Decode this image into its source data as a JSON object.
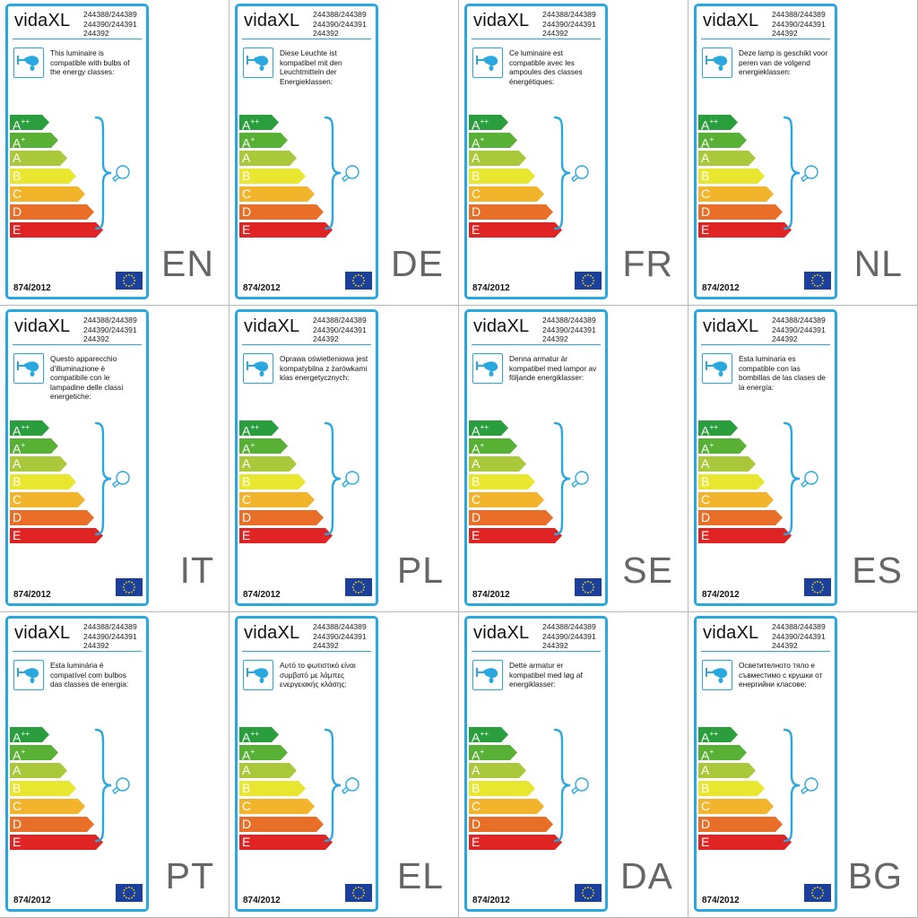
{
  "brand": "vidaXL",
  "codes": [
    "244388/244389",
    "244390/244391",
    "244392"
  ],
  "regulation": "874/2012",
  "energy_classes": [
    {
      "letter": "A",
      "sup": "++",
      "color": "#2a9d3d"
    },
    {
      "letter": "A",
      "sup": "+",
      "color": "#58b135"
    },
    {
      "letter": "A",
      "sup": "",
      "color": "#a9c93a"
    },
    {
      "letter": "B",
      "sup": "",
      "color": "#e9e630"
    },
    {
      "letter": "C",
      "sup": "",
      "color": "#f1b42a"
    },
    {
      "letter": "D",
      "sup": "",
      "color": "#e96f29"
    },
    {
      "letter": "E",
      "sup": "",
      "color": "#e02323"
    }
  ],
  "colors": {
    "frame": "#29a8e0",
    "eu_flag": "#1b3f9c",
    "eu_stars": "#ffdd00"
  },
  "icons": {
    "lamp": "lamp-icon",
    "bulb": "bulb-icon",
    "brace": "brace-icon",
    "flag": "eu-flag-icon"
  },
  "labels": [
    {
      "lang": "EN",
      "text": "This luminaire is compatible with bulbs of the energy classes:"
    },
    {
      "lang": "DE",
      "text": "Diese Leuchte ist kompatibel mit den Leuchtmitteln der Energieklassen:"
    },
    {
      "lang": "FR",
      "text": "Ce luminaire est compatible avec les ampoules des classes énergétiques:"
    },
    {
      "lang": "NL",
      "text": "Deze lamp is geschikt voor peren van de volgend energieklassen:"
    },
    {
      "lang": "IT",
      "text": "Questo apparecchio d'illuminazione è compatibile con le lampadine delle classi energetiche:"
    },
    {
      "lang": "PL",
      "text": "Oprawa oświetleniowa jest kompatybilna z żarówkami klas energetycznych:"
    },
    {
      "lang": "SE",
      "text": "Denna armatur är kompatibel med lampor av följande energiklasser:"
    },
    {
      "lang": "ES",
      "text": "Esta luminaria es compatible con las bombillas de las clases de la energía:"
    },
    {
      "lang": "PT",
      "text": "Esta luminária é compatível com bulbos das classes de energia:"
    },
    {
      "lang": "EL",
      "text": "Αυτό το φωτιστικό είναι συμβατό με λάμπες ενεργειακής κλάσης:"
    },
    {
      "lang": "DA",
      "text": "Dette armatur er kompatibel med løg af energiklasser:"
    },
    {
      "lang": "BG",
      "text": "Осветителното тяло е съвместимо с крушки от енергийни класове:"
    }
  ]
}
